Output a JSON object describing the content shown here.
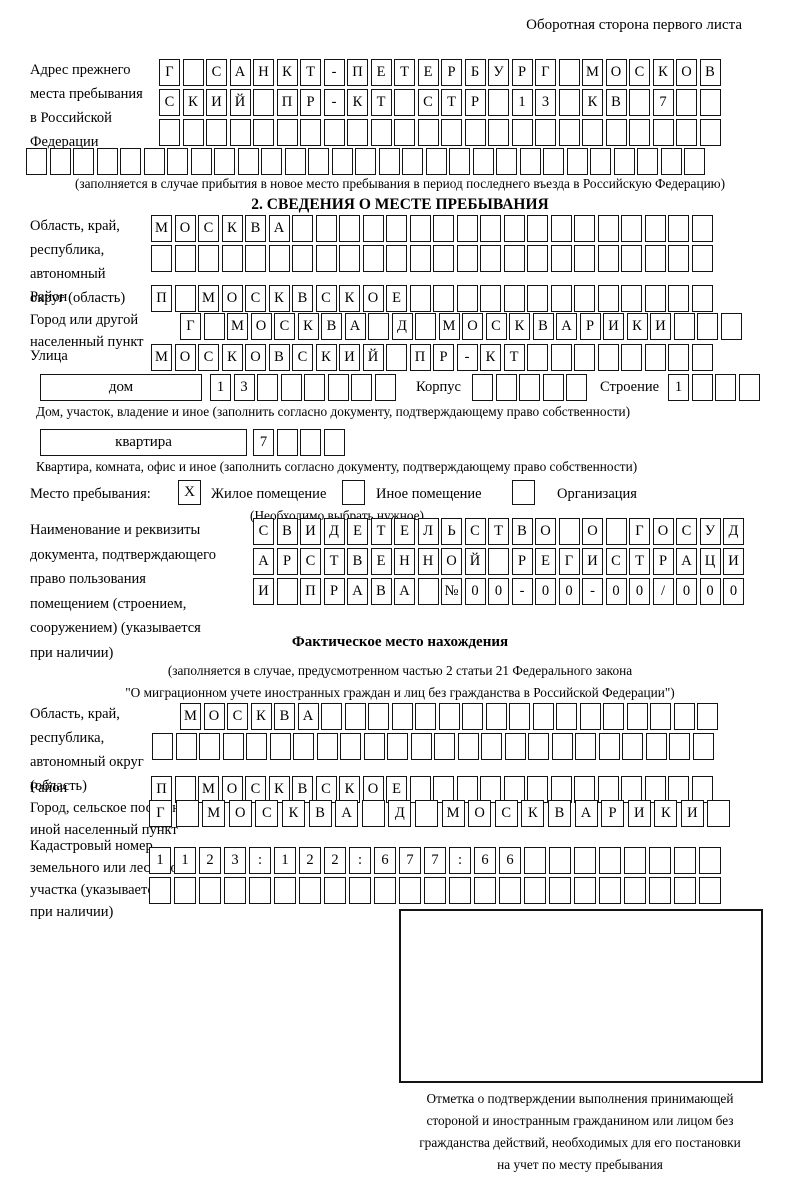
{
  "page": {
    "header_note": "Оборотная сторона первого листа"
  },
  "prev_address": {
    "label_lines": [
      "Адрес прежнего",
      "места пребывания",
      "в Российской",
      "Федерации"
    ],
    "rows": [
      [
        "Г",
        "",
        "С",
        "А",
        "Н",
        "К",
        "Т",
        "-",
        "П",
        "Е",
        "Т",
        "Е",
        "Р",
        "Б",
        "У",
        "Р",
        "Г",
        "",
        "М",
        "О",
        "С",
        "К",
        "О",
        "В"
      ],
      [
        "С",
        "К",
        "И",
        "Й",
        "",
        "П",
        "Р",
        "-",
        "К",
        "Т",
        "",
        "С",
        "Т",
        "Р",
        "",
        "1",
        "3",
        "",
        "К",
        "В",
        "",
        "7",
        "",
        ""
      ],
      [
        "",
        "",
        "",
        "",
        "",
        "",
        "",
        "",
        "",
        "",
        "",
        "",
        "",
        "",
        "",
        "",
        "",
        "",
        "",
        "",
        "",
        "",
        "",
        ""
      ]
    ],
    "full_row": [
      "",
      "",
      "",
      "",
      "",
      "",
      "",
      "",
      "",
      "",
      "",
      "",
      "",
      "",
      "",
      "",
      "",
      "",
      "",
      "",
      "",
      "",
      "",
      "",
      "",
      "",
      "",
      "",
      ""
    ],
    "caption": "(заполняется в случае прибытия в новое место пребывания в период последнего въезда в Российскую Федерацию)"
  },
  "section2": {
    "title": "2. СВЕДЕНИЯ О МЕСТЕ ПРЕБЫВАНИЯ",
    "region": {
      "label_lines": [
        "Область, край,",
        "республика,",
        "автономный",
        "округ (область)"
      ],
      "rows": [
        [
          "М",
          "О",
          "С",
          "К",
          "В",
          "А",
          "",
          "",
          "",
          "",
          "",
          "",
          "",
          "",
          "",
          "",
          "",
          "",
          "",
          "",
          "",
          "",
          "",
          ""
        ],
        [
          "",
          "",
          "",
          "",
          "",
          "",
          "",
          "",
          "",
          "",
          "",
          "",
          "",
          "",
          "",
          "",
          "",
          "",
          "",
          "",
          "",
          "",
          "",
          ""
        ]
      ]
    },
    "district": {
      "label": "Район",
      "row": [
        "П",
        "",
        "М",
        "О",
        "С",
        "К",
        "В",
        "С",
        "К",
        "О",
        "Е",
        "",
        "",
        "",
        "",
        "",
        "",
        "",
        "",
        "",
        "",
        "",
        "",
        ""
      ]
    },
    "city": {
      "label_lines": [
        "Город или другой",
        "населенный пункт"
      ],
      "row": [
        "Г",
        "",
        "М",
        "О",
        "С",
        "К",
        "В",
        "А",
        "",
        "Д",
        "",
        "М",
        "О",
        "С",
        "К",
        "В",
        "А",
        "Р",
        "И",
        "К",
        "И",
        "",
        "",
        ""
      ]
    },
    "street": {
      "label": "Улица",
      "row": [
        "М",
        "О",
        "С",
        "К",
        "О",
        "В",
        "С",
        "К",
        "И",
        "Й",
        "",
        "П",
        "Р",
        "-",
        "К",
        "Т",
        "",
        "",
        "",
        "",
        "",
        "",
        "",
        ""
      ]
    },
    "house": {
      "box_label": "дом",
      "cells": [
        "1",
        "3",
        "",
        "",
        "",
        "",
        "",
        ""
      ],
      "korpus_label": "Корпус",
      "korpus_cells": [
        "",
        "",
        "",
        "",
        ""
      ],
      "stroenie_label": "Строение",
      "stroenie_cells": [
        "1",
        "",
        "",
        ""
      ],
      "caption": "Дом, участок, владение и иное (заполнить согласно документу, подтверждающему право собственности)"
    },
    "apartment": {
      "box_label": "квартира",
      "cells": [
        "7",
        "",
        "",
        ""
      ],
      "caption": "Квартира, комната, офис и иное (заполнить согласно документу, подтверждающему право собственности)"
    },
    "stay_type": {
      "label": "Место пребывания:",
      "options": [
        {
          "mark": "X",
          "label": "Жилое помещение"
        },
        {
          "mark": "",
          "label": "Иное помещение"
        },
        {
          "mark": "",
          "label": "Организация"
        }
      ],
      "note": "(Необходимо выбрать нужное)"
    },
    "document": {
      "label_lines": [
        "Наименование и реквизиты",
        "документа, подтверждающего",
        "право пользования",
        "помещением (строением,",
        "сооружением) (указывается",
        "при наличии)"
      ],
      "rows": [
        [
          "С",
          "В",
          "И",
          "Д",
          "Е",
          "Т",
          "Е",
          "Л",
          "Ь",
          "С",
          "Т",
          "В",
          "О",
          "",
          "О",
          "",
          "Г",
          "О",
          "С",
          "У",
          "Д"
        ],
        [
          "А",
          "Р",
          "С",
          "Т",
          "В",
          "Е",
          "Н",
          "Н",
          "О",
          "Й",
          "",
          "Р",
          "Е",
          "Г",
          "И",
          "С",
          "Т",
          "Р",
          "А",
          "Ц",
          "И"
        ],
        [
          "И",
          "",
          "П",
          "Р",
          "А",
          "В",
          "А",
          "",
          "№",
          "0",
          "0",
          "-",
          "0",
          "0",
          "-",
          "0",
          "0",
          "/",
          "0",
          "0",
          "0"
        ]
      ]
    }
  },
  "actual_location": {
    "title": "Фактическое место нахождения",
    "caption_lines": [
      "(заполняется в случае, предусмотренном частью 2 статьи 21 Федерального закона",
      "\"О миграционном учете иностранных граждан и лиц без гражданства в Российской Федерации\")"
    ],
    "region": {
      "label_lines": [
        "Область, край,",
        "республика,",
        "автономный округ",
        "(область)"
      ],
      "rows": [
        [
          "М",
          "О",
          "С",
          "К",
          "В",
          "А",
          "",
          "",
          "",
          "",
          "",
          "",
          "",
          "",
          "",
          "",
          "",
          "",
          "",
          "",
          "",
          "",
          ""
        ],
        [
          "",
          "",
          "",
          "",
          "",
          "",
          "",
          "",
          "",
          "",
          "",
          "",
          "",
          "",
          "",
          "",
          "",
          "",
          "",
          "",
          "",
          "",
          "",
          ""
        ]
      ]
    },
    "district": {
      "label": "Район",
      "row": [
        "П",
        "",
        "М",
        "О",
        "С",
        "К",
        "В",
        "С",
        "К",
        "О",
        "Е",
        "",
        "",
        "",
        "",
        "",
        "",
        "",
        "",
        "",
        "",
        "",
        "",
        ""
      ]
    },
    "city": {
      "label_lines": [
        "Город, сельское поселение,",
        "иной населенный пункт"
      ],
      "row": [
        "Г",
        "",
        "М",
        "О",
        "С",
        "К",
        "В",
        "А",
        "",
        "Д",
        "",
        "М",
        "О",
        "С",
        "К",
        "В",
        "А",
        "Р",
        "И",
        "К",
        "И",
        ""
      ]
    },
    "cadastral": {
      "label_lines": [
        "Кадастровый номер",
        "земельного или лесного",
        "участка (указывается",
        "при наличии)"
      ],
      "rows": [
        [
          "1",
          "1",
          "2",
          "3",
          ":",
          "1",
          "2",
          "2",
          ":",
          "6",
          "7",
          "7",
          ":",
          "6",
          "6",
          "",
          "",
          "",
          "",
          "",
          "",
          "",
          ""
        ],
        [
          "",
          "",
          "",
          "",
          "",
          "",
          "",
          "",
          "",
          "",
          "",
          "",
          "",
          "",
          "",
          "",
          "",
          "",
          "",
          "",
          "",
          "",
          ""
        ]
      ]
    }
  },
  "confirmation": {
    "caption_lines": [
      "Отметка о подтверждении выполнения принимающей",
      "стороной и иностранным гражданином или лицом без",
      "гражданства действий, необходимых для его постановки",
      "на учет по месту пребывания"
    ]
  }
}
